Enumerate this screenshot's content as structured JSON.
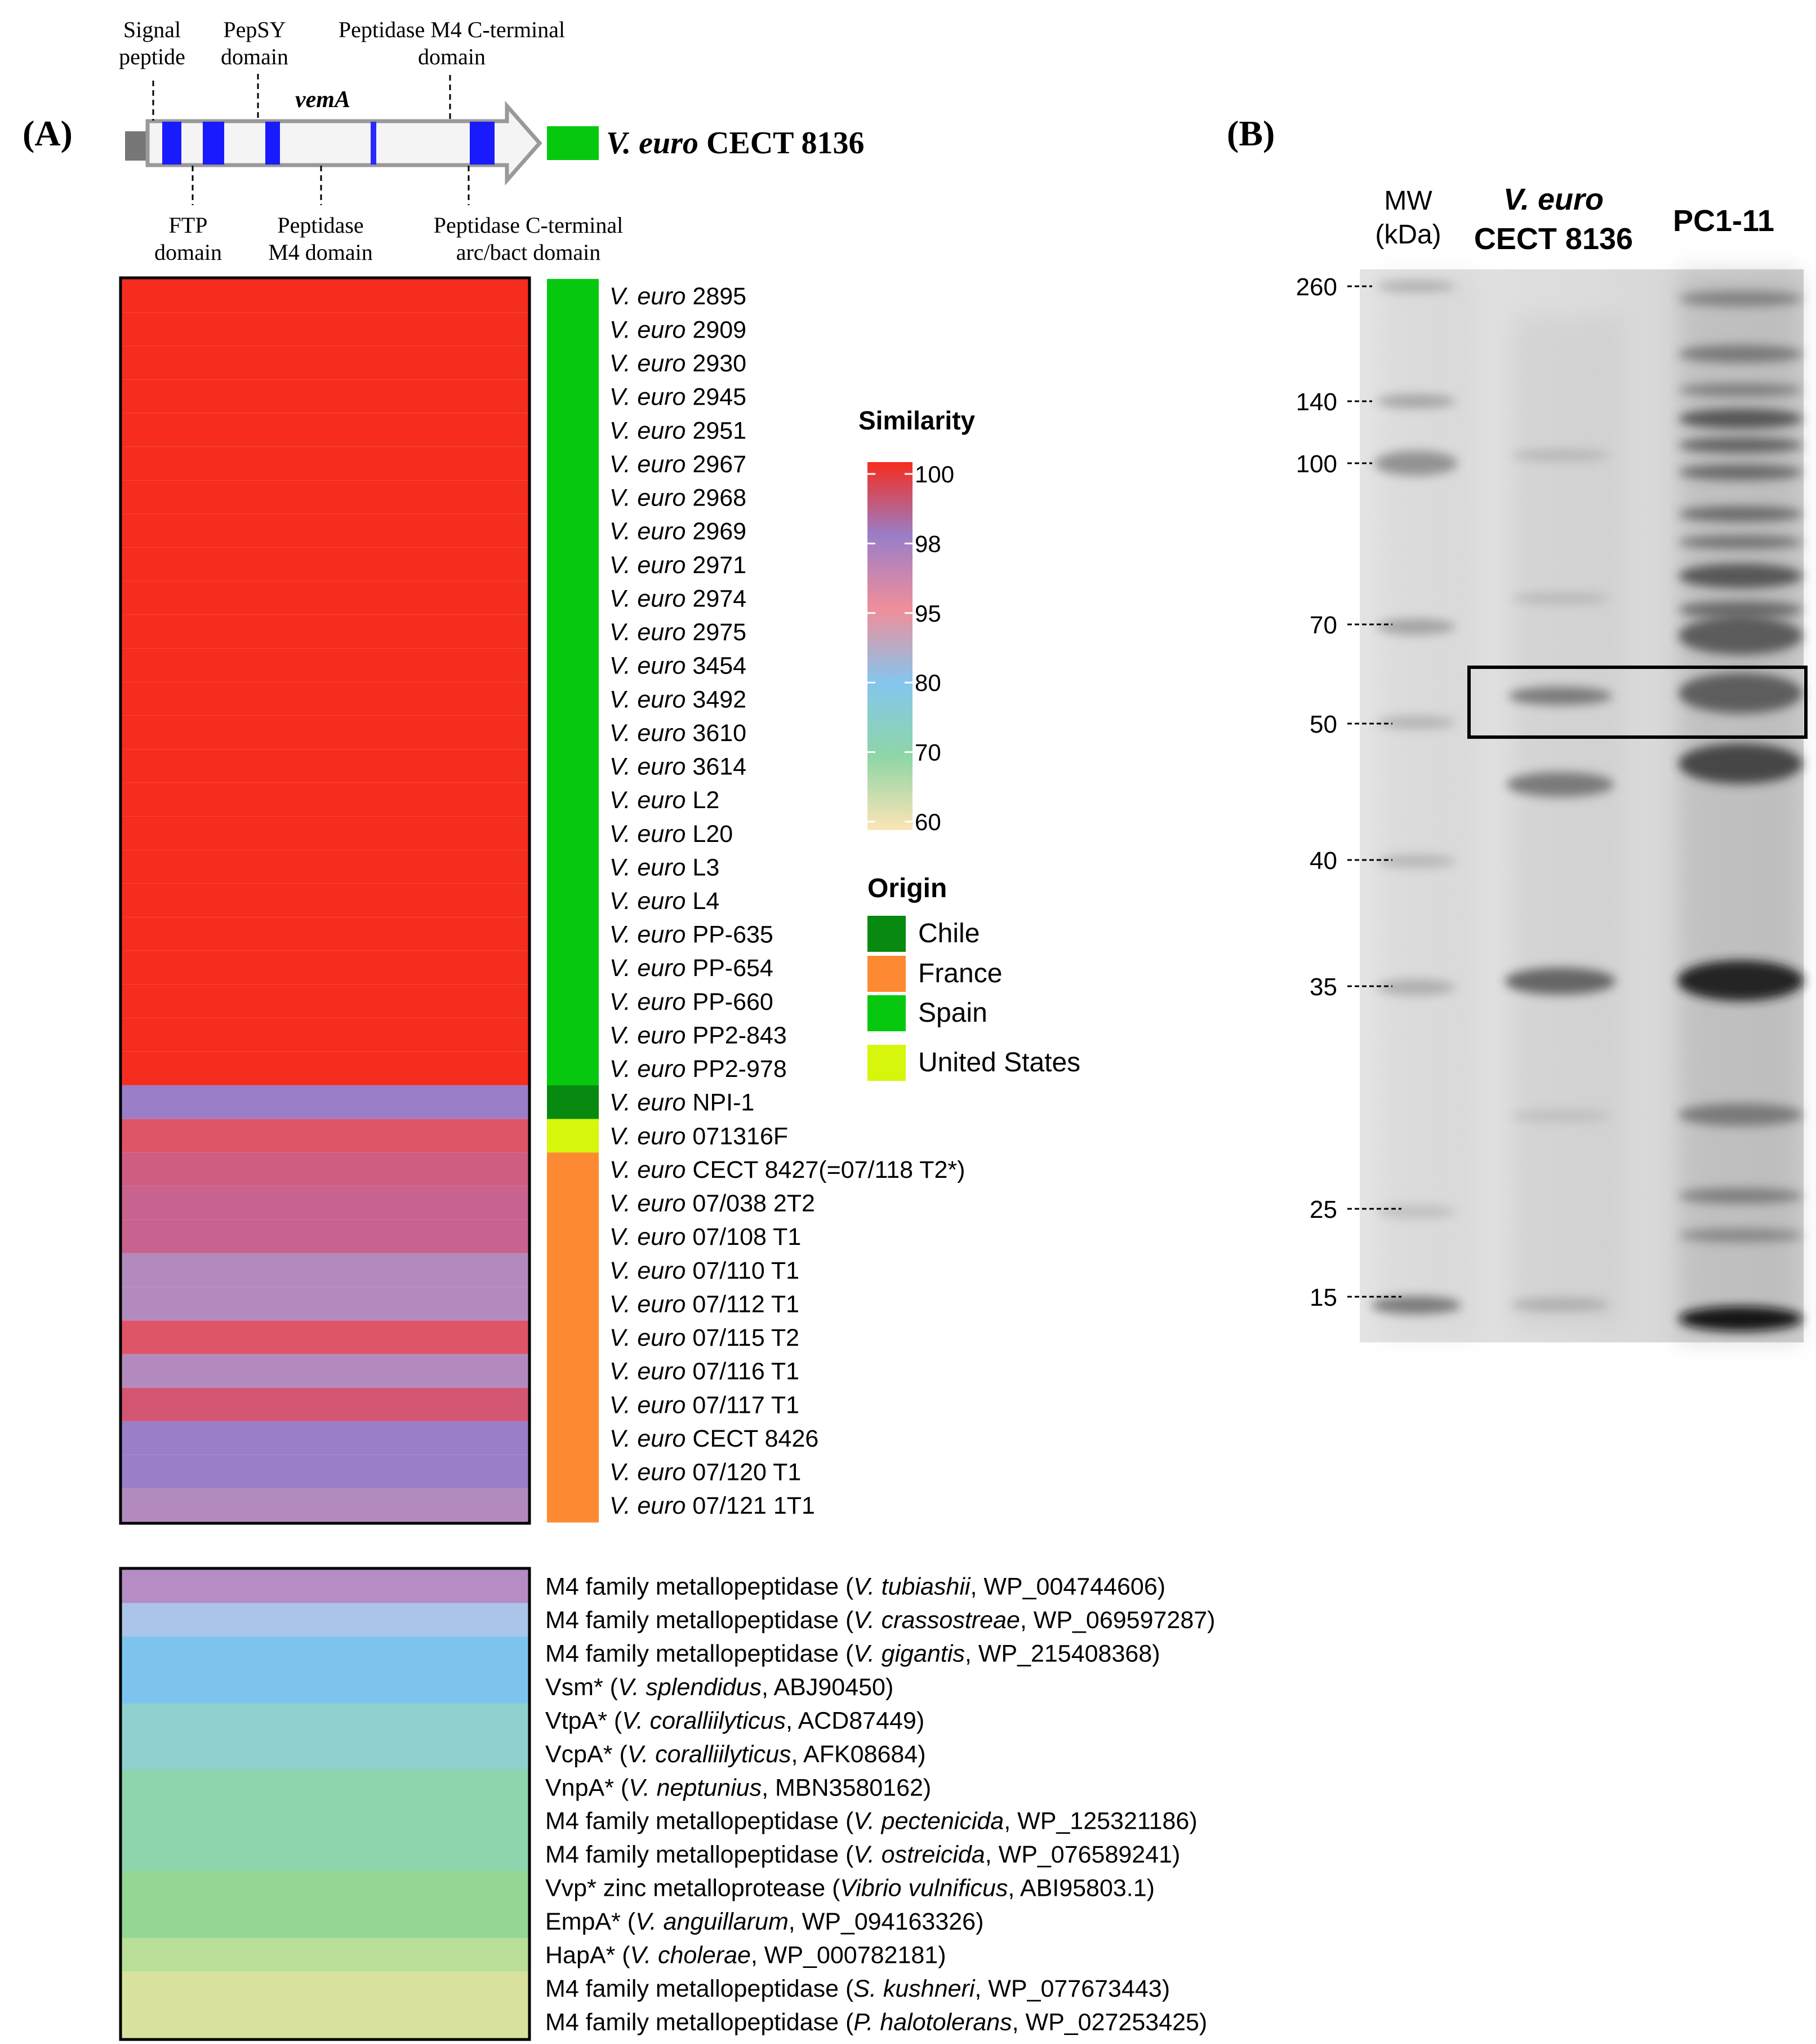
{
  "panel_a": {
    "label": "(A)",
    "gene": {
      "name": "vemA",
      "strain_label": "V. euro CECT 8136",
      "strain_species": "V. euro",
      "strain_id": "CECT 8136",
      "domains_top": [
        {
          "line1": "Signal",
          "line2": "peptide"
        },
        {
          "line1": "PepSY",
          "line2": "domain"
        },
        {
          "line1": "Peptidase M4 C-terminal",
          "line2": "domain"
        }
      ],
      "domains_bottom": [
        {
          "line1": "FTP",
          "line2": "domain"
        },
        {
          "line1": "Peptidase",
          "line2": "M4 domain"
        },
        {
          "line1": "Peptidase C-terminal",
          "line2": "arc/bact domain"
        }
      ]
    },
    "strains": [
      {
        "species": "V. euro",
        "id": "2895",
        "origin": "Spain",
        "color": "#f52c1e"
      },
      {
        "species": "V. euro",
        "id": "2909",
        "origin": "Spain",
        "color": "#f52c1e"
      },
      {
        "species": "V. euro",
        "id": "2930",
        "origin": "Spain",
        "color": "#f52c1e"
      },
      {
        "species": "V. euro",
        "id": "2945",
        "origin": "Spain",
        "color": "#f52c1e"
      },
      {
        "species": "V. euro",
        "id": "2951",
        "origin": "Spain",
        "color": "#f52c1e"
      },
      {
        "species": "V. euro",
        "id": "2967",
        "origin": "Spain",
        "color": "#f52c1e"
      },
      {
        "species": "V. euro",
        "id": "2968",
        "origin": "Spain",
        "color": "#f52c1e"
      },
      {
        "species": "V. euro",
        "id": "2969",
        "origin": "Spain",
        "color": "#f52c1e"
      },
      {
        "species": "V. euro",
        "id": "2971",
        "origin": "Spain",
        "color": "#f52c1e"
      },
      {
        "species": "V. euro",
        "id": "2974",
        "origin": "Spain",
        "color": "#f52c1e"
      },
      {
        "species": "V. euro",
        "id": "2975",
        "origin": "Spain",
        "color": "#f52c1e"
      },
      {
        "species": "V. euro",
        "id": "3454",
        "origin": "Spain",
        "color": "#f52c1e"
      },
      {
        "species": "V. euro",
        "id": "3492",
        "origin": "Spain",
        "color": "#f52c1e"
      },
      {
        "species": "V. euro",
        "id": "3610",
        "origin": "Spain",
        "color": "#f52c1e"
      },
      {
        "species": "V. euro",
        "id": "3614",
        "origin": "Spain",
        "color": "#f52c1e"
      },
      {
        "species": "V. euro",
        "id": "L2",
        "origin": "Spain",
        "color": "#f52c1e"
      },
      {
        "species": "V. euro",
        "id": "L20",
        "origin": "Spain",
        "color": "#f52c1e"
      },
      {
        "species": "V. euro",
        "id": "L3",
        "origin": "Spain",
        "color": "#f52c1e"
      },
      {
        "species": "V. euro",
        "id": "L4",
        "origin": "Spain",
        "color": "#f52c1e"
      },
      {
        "species": "V. euro",
        "id": "PP-635",
        "origin": "Spain",
        "color": "#f52c1e"
      },
      {
        "species": "V. euro",
        "id": "PP-654",
        "origin": "Spain",
        "color": "#f52c1e"
      },
      {
        "species": "V. euro",
        "id": "PP-660",
        "origin": "Spain",
        "color": "#f52c1e"
      },
      {
        "species": "V. euro",
        "id": "PP2-843",
        "origin": "Spain",
        "color": "#f52c1e"
      },
      {
        "species": "V. euro",
        "id": "PP2-978",
        "origin": "Spain",
        "color": "#f52c1e"
      },
      {
        "species": "V. euro",
        "id": "NPI-1",
        "origin": "Chile",
        "color": "#9a7ec8"
      },
      {
        "species": "V. euro",
        "id": "071316F",
        "origin": "United States",
        "color": "#df5466"
      },
      {
        "species": "V. euro",
        "id": "CECT 8427(=07/118 T2*)",
        "origin": "France",
        "color": "#cf5d82"
      },
      {
        "species": "V. euro",
        "id": "07/038 2T2",
        "origin": "France",
        "color": "#c8628e"
      },
      {
        "species": "V. euro",
        "id": "07/108 T1",
        "origin": "France",
        "color": "#c8628e"
      },
      {
        "species": "V. euro",
        "id": "07/110 T1",
        "origin": "France",
        "color": "#b38abe"
      },
      {
        "species": "V. euro",
        "id": "07/112 T1",
        "origin": "France",
        "color": "#b38abe"
      },
      {
        "species": "V. euro",
        "id": "07/115 T2",
        "origin": "France",
        "color": "#df5466"
      },
      {
        "species": "V. euro",
        "id": "07/116 T1",
        "origin": "France",
        "color": "#b38abe"
      },
      {
        "species": "V. euro",
        "id": "07/117 T1",
        "origin": "France",
        "color": "#d25672"
      },
      {
        "species": "V. euro",
        "id": "CECT 8426",
        "origin": "France",
        "color": "#9a7ec8"
      },
      {
        "species": "V. euro",
        "id": "07/120 T1",
        "origin": "France",
        "color": "#9a7ec8"
      },
      {
        "species": "V. euro",
        "id": "07/121 1T1",
        "origin": "France",
        "color": "#b38abe"
      }
    ],
    "references": [
      {
        "prefix": "M4 family metallopeptidase (",
        "species": "V. tubiashii",
        "suffix": ", WP_004744606)",
        "color": "#b58cc4"
      },
      {
        "prefix": "M4 family metallopeptidase (",
        "species": "V. crassostreae",
        "suffix": ", WP_069597287)",
        "color": "#aac4ea"
      },
      {
        "prefix": "M4 family metallopeptidase (",
        "species": "V. gigantis",
        "suffix": ", WP_215408368)",
        "color": "#7cc4ee"
      },
      {
        "prefix": "Vsm* (",
        "species": "V. splendidus",
        "suffix": ", ABJ90450)",
        "color": "#7cc4ee"
      },
      {
        "prefix": "VtpA* (",
        "species": "V. coralliilyticus",
        "suffix": ", ACD87449)",
        "color": "#8fd0cc"
      },
      {
        "prefix": "VcpA* (",
        "species": "V. coralliilyticus",
        "suffix": ", AFK08684)",
        "color": "#8fd0cc"
      },
      {
        "prefix": "VnpA* (",
        "species": "V. neptunius",
        "suffix": ", MBN3580162)",
        "color": "#8ed4ac"
      },
      {
        "prefix": "M4 family metallopeptidase (",
        "species": "V. pectenicida",
        "suffix": ", WP_125321186)",
        "color": "#8ed4ac"
      },
      {
        "prefix": "M4 family metallopeptidase (",
        "species": "V. ostreicida",
        "suffix": ", WP_076589241)",
        "color": "#8ed4ac"
      },
      {
        "prefix": "Vvp* zinc metalloprotease (",
        "species": "Vibrio vulnificus",
        "suffix": ", ABI95803.1)",
        "color": "#94d694"
      },
      {
        "prefix": "EmpA* (",
        "species": "V. anguillarum",
        "suffix": ", WP_094163326)",
        "color": "#94d694"
      },
      {
        "prefix": "HapA* (",
        "species": "V. cholerae",
        "suffix": ", WP_000782181)",
        "color": "#b8de98"
      },
      {
        "prefix": "M4 family metallopeptidase (",
        "species": "S. kushneri",
        "suffix": ", WP_077673443)",
        "color": "#d8e29e"
      },
      {
        "prefix": "M4 family metallopeptidase (",
        "species": "P. halotolerans",
        "suffix": ", WP_027253425)",
        "color": "#d8e29e"
      }
    ],
    "similarity_legend": {
      "title": "Similarity",
      "ticks": [
        "100",
        "98",
        "95",
        "80",
        "70",
        "60"
      ],
      "colors": [
        "#f52c1e",
        "#9a7ec8",
        "#f08e9a",
        "#84c6ee",
        "#8ed6a6",
        "#fde4b6"
      ]
    },
    "origin_legend": {
      "title": "Origin",
      "items": [
        {
          "label": "Chile",
          "color": "#078a0f"
        },
        {
          "label": "France",
          "color": "#fd8a32"
        },
        {
          "label": "Spain",
          "color": "#06c90f"
        },
        {
          "label": "United States",
          "color": "#d6f60b"
        }
      ]
    }
  },
  "panel_b": {
    "label": "(B)",
    "lanes": [
      {
        "line1": "MW",
        "line2": "(kDa)"
      },
      {
        "line1": "V. euro",
        "line2": "CECT 8136"
      },
      {
        "line1": "PC1-11",
        "line2": ""
      }
    ],
    "markers": [
      "260",
      "140",
      "100",
      "70",
      "50",
      "40",
      "35",
      "25",
      "15"
    ]
  }
}
